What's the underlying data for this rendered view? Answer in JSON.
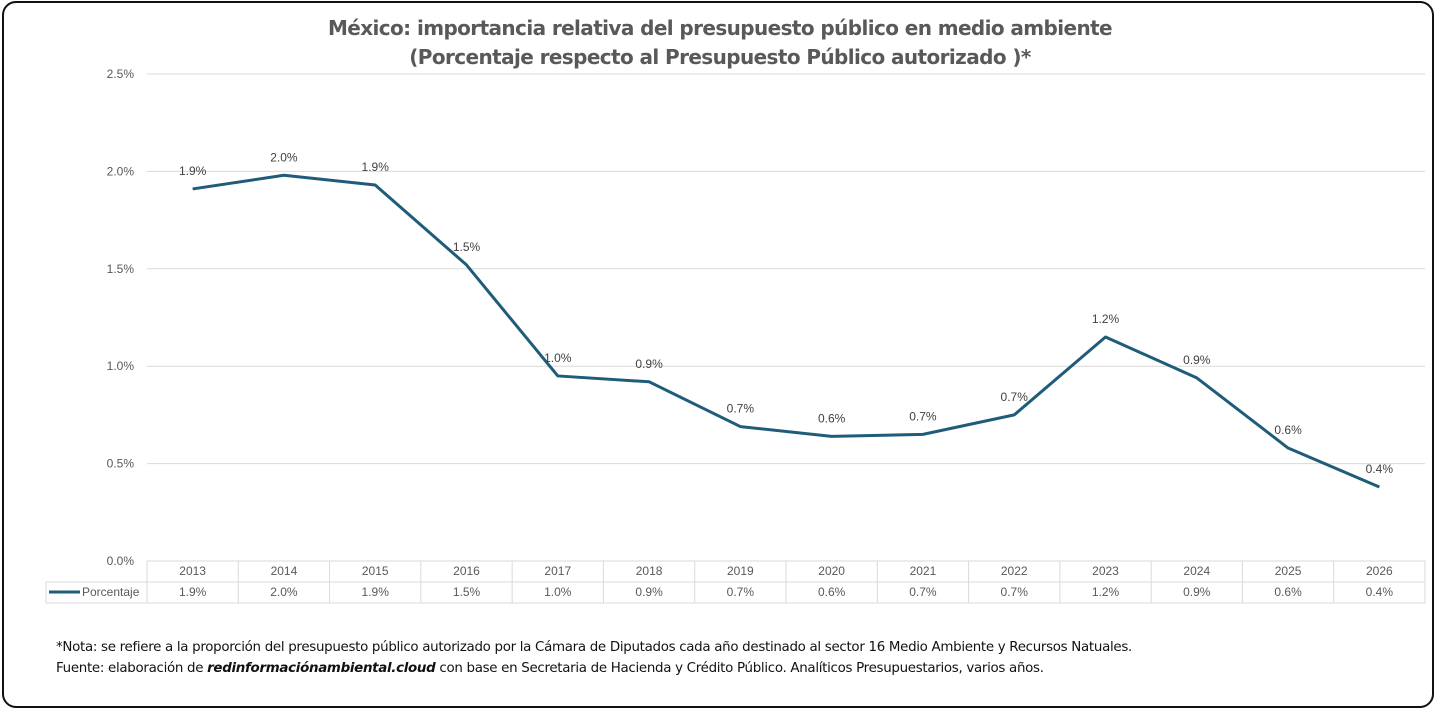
{
  "chart_data": {
    "type": "line",
    "title": "México: importancia relativa del presupuesto público en medio ambiente",
    "subtitle": "(Porcentaje respecto al Presupuesto Público autorizado )*",
    "xlabel": "",
    "ylabel": "",
    "ylim": [
      0,
      2.5
    ],
    "yticks": [
      "0.0%",
      "0.5%",
      "1.0%",
      "1.5%",
      "2.0%",
      "2.5%"
    ],
    "ytick_values": [
      0,
      0.5,
      1.0,
      1.5,
      2.0,
      2.5
    ],
    "grid": true,
    "legend": "data-table-bottom",
    "categories": [
      "2013",
      "2014",
      "2015",
      "2016",
      "2017",
      "2018",
      "2019",
      "2020",
      "2021",
      "2022",
      "2023",
      "2024",
      "2025",
      "2026"
    ],
    "series": [
      {
        "name": "Porcentaje",
        "color": "#1F5C7A",
        "values": [
          1.91,
          1.98,
          1.93,
          1.52,
          0.95,
          0.92,
          0.69,
          0.64,
          0.65,
          0.75,
          1.15,
          0.94,
          0.58,
          0.38
        ],
        "labels": [
          "1.9%",
          "2.0%",
          "1.9%",
          "1.5%",
          "1.0%",
          "0.9%",
          "0.7%",
          "0.6%",
          "0.7%",
          "0.7%",
          "1.2%",
          "0.9%",
          "0.6%",
          "0.4%"
        ]
      }
    ],
    "data_table": {
      "series_label": "Porcentaje",
      "row": [
        "1.9%",
        "2.0%",
        "1.9%",
        "1.5%",
        "1.0%",
        "0.9%",
        "0.7%",
        "0.6%",
        "0.7%",
        "0.7%",
        "1.2%",
        "0.9%",
        "0.6%",
        "0.4%"
      ]
    }
  },
  "notes": {
    "nota": "*Nota: se refiere a la proporción del presupuesto público autorizado por la Cámara de Diputados cada año destinado al sector 16 Medio Ambiente y Recursos Natuales.",
    "fuente_prefix": "Fuente: elaboración de ",
    "fuente_site": "redinformaciónambiental.cloud",
    "fuente_suffix": " con base en  Secretaria de Hacienda y Crédito Público. Analíticos Presupuestarios, varios años."
  }
}
